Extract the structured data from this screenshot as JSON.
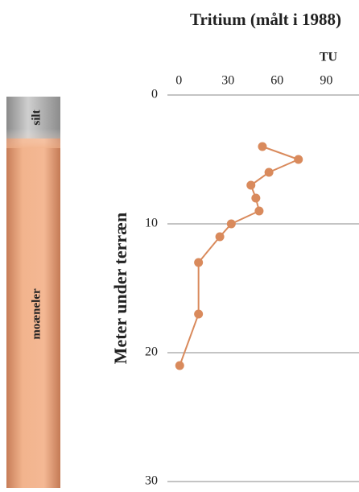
{
  "chart_data": {
    "type": "line",
    "title": "Tritium (målt i 1988)",
    "x_label": "TU",
    "y_label": "Meter under terræn",
    "annotations": [
      "silt",
      "moæneler"
    ],
    "series": [
      {
        "color": "#d98a5c",
        "x": [
          51,
          73,
          55,
          44,
          47,
          49,
          32,
          25,
          12,
          12,
          0.5
        ],
        "values": [
          4,
          5,
          6,
          7,
          8,
          9,
          10,
          11,
          13,
          17,
          21
        ]
      }
    ],
    "xlim": [
      -7,
      110
    ],
    "xticks": [
      0,
      30,
      60,
      90
    ],
    "ylim": [
      0,
      30
    ],
    "yticks": [
      0,
      10,
      20,
      30
    ],
    "y_inverted": true,
    "grid": true
  }
}
